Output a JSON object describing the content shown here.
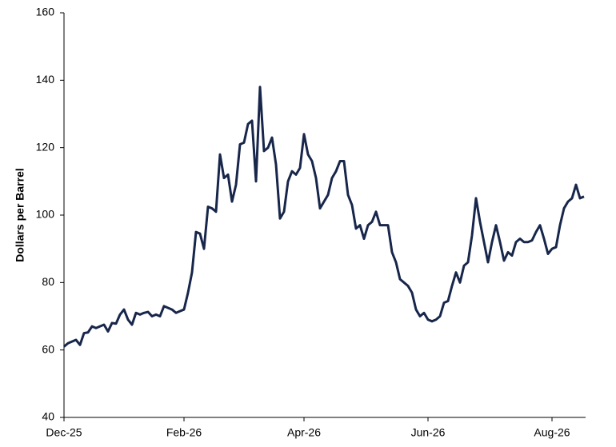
{
  "chart_data": {
    "type": "line",
    "y_label": "Dollars per Barrel",
    "categories": [
      "Dec-25",
      null,
      null,
      null,
      null,
      null,
      null,
      null,
      null,
      null,
      null,
      null,
      null,
      null,
      null,
      null,
      null,
      null,
      null,
      null,
      null,
      null,
      null,
      null,
      null,
      null,
      null,
      null,
      null,
      null,
      "Feb-26",
      null,
      null,
      null,
      null,
      null,
      null,
      null,
      null,
      null,
      null,
      null,
      null,
      null,
      null,
      null,
      null,
      null,
      null,
      null,
      null,
      null,
      null,
      null,
      null,
      null,
      null,
      null,
      null,
      null,
      "Apr-26",
      null,
      null,
      null,
      null,
      null,
      null,
      null,
      null,
      null,
      null,
      null,
      null,
      null,
      null,
      null,
      null,
      null,
      null,
      null,
      null,
      null,
      null,
      null,
      null,
      null,
      null,
      null,
      null,
      null,
      null,
      "Jun-26",
      null,
      null,
      null,
      null,
      null,
      null,
      null,
      null,
      null,
      null,
      null,
      null,
      null,
      null,
      null,
      null,
      null,
      null,
      null,
      null,
      null,
      null,
      null,
      null,
      null,
      null,
      null,
      null,
      null,
      null,
      "Aug-26",
      null,
      null,
      null,
      null,
      null,
      null,
      null,
      null
    ],
    "values": [
      61,
      62,
      62.5,
      63,
      61.5,
      65,
      65.2,
      67,
      66.5,
      67,
      67.5,
      65.5,
      68,
      67.8,
      70.5,
      72,
      69,
      67.5,
      71,
      70.5,
      71,
      71.3,
      70,
      70.5,
      70,
      73,
      72.5,
      72,
      71,
      71.5,
      72,
      77,
      83,
      95,
      94.5,
      90,
      102.5,
      102,
      101,
      118,
      111,
      112,
      104,
      109,
      121,
      121.5,
      127,
      128,
      110,
      138,
      119,
      120,
      123,
      115,
      99,
      101,
      110,
      113,
      112,
      114,
      124,
      118,
      116,
      111,
      102,
      104,
      106,
      111,
      113,
      116,
      116,
      106,
      103,
      96,
      97,
      93,
      97,
      98,
      101,
      97,
      97,
      97,
      89,
      86,
      81,
      80,
      79,
      77,
      72,
      70,
      71,
      69,
      68.5,
      69,
      70,
      74,
      74.5,
      79,
      83,
      80,
      85,
      86,
      94,
      105,
      98,
      92,
      86,
      92,
      97,
      92,
      86.5,
      89,
      88,
      92,
      93,
      92,
      92,
      92.5,
      95,
      97,
      93,
      88.5,
      90,
      90.5,
      97,
      102,
      104,
      105,
      109,
      105,
      105.5
    ],
    "color": "#17264a",
    "ylim": [
      40,
      160
    ],
    "yticks": [
      40,
      60,
      80,
      100,
      120,
      140,
      160
    ],
    "grid": false
  }
}
